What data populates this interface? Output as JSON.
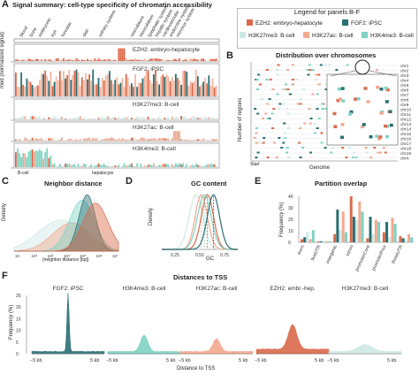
{
  "panels": {
    "A": {
      "letter": "A",
      "title": "Signal summary: cell-type specificity of chromatin accessibility",
      "ylabel": "med (normalized signal)",
      "xlabel_left": "B-cell",
      "xlabel_mid": "hepatocyte",
      "tissue_labels": [
        "blood",
        "bone",
        "embryonic",
        "eye",
        "foreskin",
        "skin",
        "urinary system",
        "vasculature",
        "musculature",
        "lymphatic system",
        "hepatic system",
        "cardiovascular",
        "endocrine system",
        "nervous system"
      ],
      "rows": [
        "EZH2: embryo-hepatocyte",
        "FGF2: iPSC",
        "H3K27me3: B-cell",
        "H3K27ac: B-cell",
        "H3K4me3: B-cell"
      ]
    },
    "B": {
      "letter": "B",
      "title": "Distribution over chromosomes",
      "ylabel": "Number of regions",
      "xlabel": "Genome",
      "start": "Start",
      "chroms": [
        "chr1",
        "chr2",
        "chr3",
        "chr4",
        "chr5",
        "chr6",
        "chr7",
        "chr8",
        "chr9",
        "chr10",
        "chr11",
        "chr12",
        "chr13",
        "chr14",
        "chr15",
        "chr16",
        "chr17",
        "chr18",
        "chr19",
        "chrX"
      ]
    },
    "C": {
      "letter": "C",
      "title": "Neighbor distance",
      "ylabel": "Density",
      "xlabel": "(neighbor distance [bp])",
      "ticks": [
        "10",
        "10²",
        "10³",
        "10⁴",
        "10⁵",
        "10⁶",
        "10⁷"
      ]
    },
    "D": {
      "letter": "D",
      "title": "GC content",
      "ylabel": "Density",
      "xlabel": "GC",
      "ticks": [
        "0.25",
        "0.50",
        "0.75"
      ]
    },
    "E": {
      "letter": "E",
      "title": "Partition overlap",
      "ylabel": "Frequency (%)",
      "yticks": [
        "40",
        "30",
        "20",
        "10",
        "0"
      ],
      "categories": [
        "exon",
        "fiveUTR",
        "intergenic",
        "intron",
        "promoterCore",
        "promoterProx",
        "threeUTR"
      ]
    },
    "F": {
      "letter": "F",
      "title": "Distances to TSS",
      "ylabel": "Frequency (%)",
      "xlabel": "Distance to TSS",
      "yticks": [
        "25",
        "20",
        "15",
        "10",
        "5",
        "0"
      ],
      "xticks": [
        "−5 kb",
        "5 kb"
      ],
      "facets": [
        "FGF2: iPSC",
        "H3K4me3: B-cell",
        "H3K27ac: B-cell",
        "EZH2: embr.-hep.",
        "H3K27me3: B-cell"
      ]
    }
  },
  "legend": {
    "title": "Legend for panels B-F",
    "items": [
      {
        "label": "EZH2: embryo-hepatocyte",
        "color": "#d9694a"
      },
      {
        "label": "FGF2: iPSC",
        "color": "#2a6f73"
      },
      {
        "label": "H3K27me3: B-cell",
        "color": "#cfe9e6"
      },
      {
        "label": "H3K27ac: B-cell",
        "color": "#f2a98f"
      },
      {
        "label": "H3K4me3: B-cell",
        "color": "#7fd3c3"
      }
    ]
  },
  "colors": {
    "ezh2": "#d9694a",
    "fgf2": "#2a6f73",
    "h3k27me3": "#cfe9e6",
    "h3k27ac": "#f2a98f",
    "h3k4me3": "#7fd3c3"
  }
}
